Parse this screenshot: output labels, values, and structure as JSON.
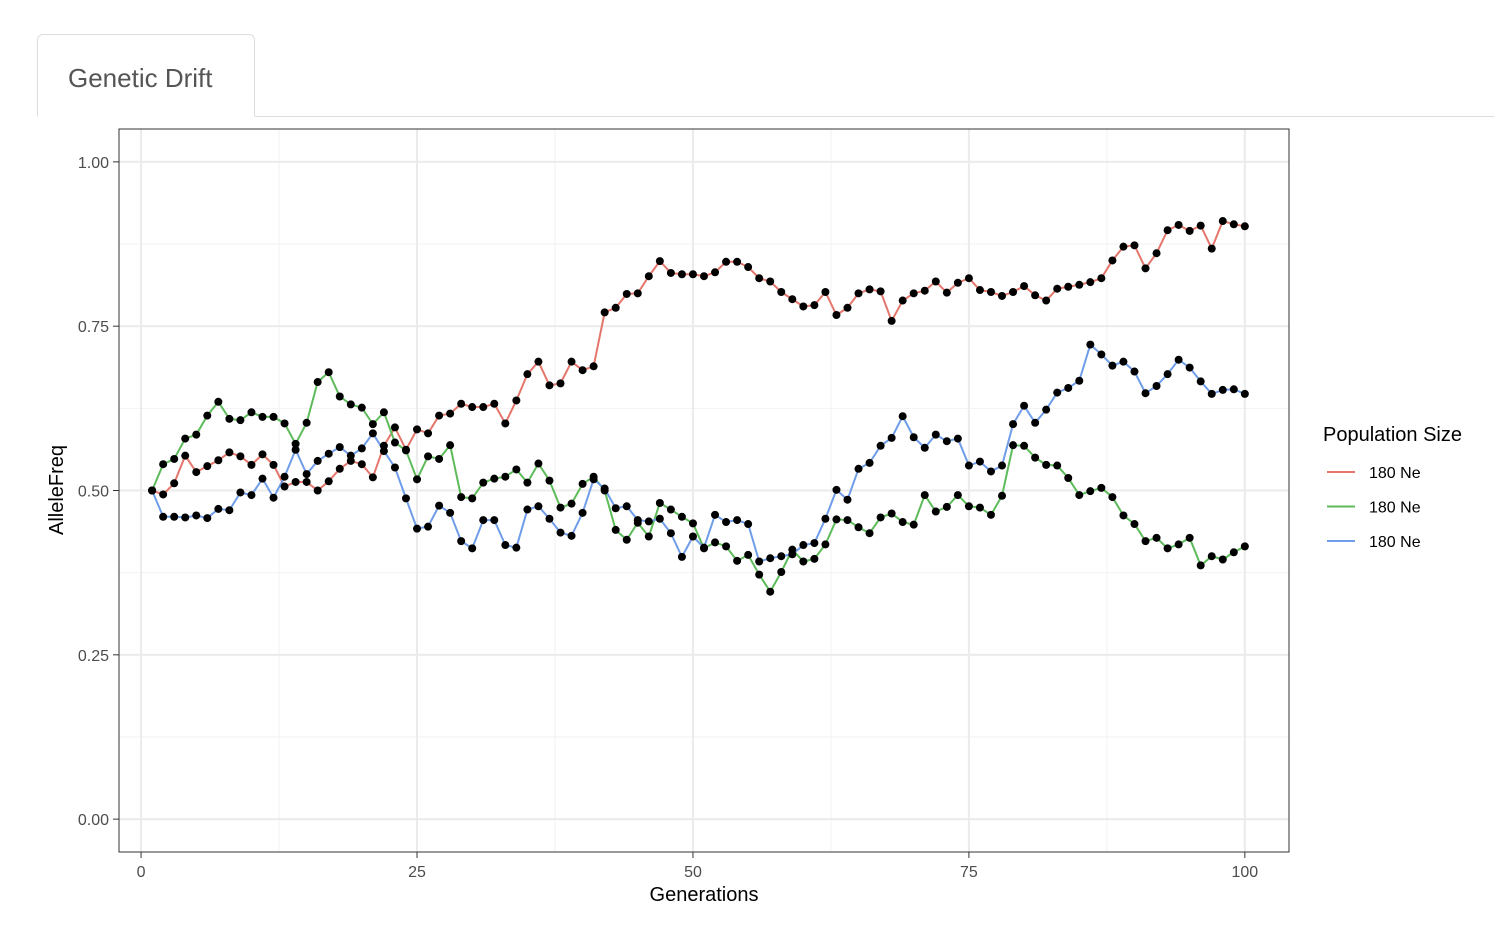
{
  "tabs": [
    {
      "label": "Genetic Drift",
      "active": true
    }
  ],
  "chart_data": {
    "type": "line",
    "title": "",
    "xlabel": "Generations",
    "ylabel": "AlleleFreq",
    "xlim": [
      -2,
      104
    ],
    "ylim": [
      -0.05,
      1.05
    ],
    "xticks": [
      0,
      25,
      50,
      75,
      100
    ],
    "xtick_labels": [
      "0",
      "25",
      "50",
      "75",
      "100"
    ],
    "yticks": [
      0,
      0.25,
      0.5,
      0.75,
      1.0
    ],
    "ytick_labels": [
      "0.00",
      "0.25",
      "0.50",
      "0.75",
      "1.00"
    ],
    "grid": true,
    "points": true,
    "legend": {
      "title": "Population Size",
      "position": "right"
    },
    "series": [
      {
        "name": "180 Ne",
        "color": "#E5766C",
        "values": [
          0.5,
          0.494,
          0.511,
          0.553,
          0.528,
          0.537,
          0.546,
          0.558,
          0.552,
          0.539,
          0.555,
          0.539,
          0.506,
          0.513,
          0.513,
          0.5,
          0.514,
          0.533,
          0.545,
          0.54,
          0.52,
          0.568,
          0.596,
          0.562,
          0.593,
          0.587,
          0.614,
          0.617,
          0.632,
          0.627,
          0.627,
          0.632,
          0.602,
          0.637,
          0.677,
          0.696,
          0.66,
          0.663,
          0.696,
          0.683,
          0.689,
          0.771,
          0.778,
          0.799,
          0.8,
          0.826,
          0.849,
          0.831,
          0.829,
          0.829,
          0.826,
          0.832,
          0.848,
          0.848,
          0.84,
          0.823,
          0.818,
          0.802,
          0.791,
          0.78,
          0.782,
          0.802,
          0.767,
          0.778,
          0.8,
          0.806,
          0.803,
          0.758,
          0.789,
          0.8,
          0.804,
          0.818,
          0.801,
          0.816,
          0.823,
          0.805,
          0.802,
          0.796,
          0.802,
          0.811,
          0.797,
          0.789,
          0.807,
          0.81,
          0.813,
          0.817,
          0.823,
          0.85,
          0.871,
          0.873,
          0.838,
          0.861,
          0.896,
          0.904,
          0.895,
          0.903,
          0.868,
          0.91,
          0.905,
          0.902
        ]
      },
      {
        "name": "180 Ne",
        "color": "#5DBB5A",
        "values": [
          0.5,
          0.54,
          0.548,
          0.579,
          0.585,
          0.614,
          0.635,
          0.609,
          0.607,
          0.619,
          0.612,
          0.612,
          0.602,
          0.571,
          0.603,
          0.665,
          0.68,
          0.643,
          0.631,
          0.626,
          0.601,
          0.619,
          0.573,
          0.561,
          0.517,
          0.552,
          0.548,
          0.569,
          0.49,
          0.488,
          0.512,
          0.518,
          0.521,
          0.532,
          0.512,
          0.541,
          0.515,
          0.474,
          0.48,
          0.51,
          0.521,
          0.5,
          0.44,
          0.425,
          0.451,
          0.43,
          0.481,
          0.471,
          0.46,
          0.45,
          0.412,
          0.421,
          0.415,
          0.393,
          0.402,
          0.372,
          0.346,
          0.376,
          0.41,
          0.392,
          0.396,
          0.418,
          0.456,
          0.455,
          0.444,
          0.435,
          0.459,
          0.465,
          0.452,
          0.448,
          0.493,
          0.468,
          0.475,
          0.493,
          0.476,
          0.474,
          0.463,
          0.492,
          0.569,
          0.568,
          0.55,
          0.539,
          0.538,
          0.519,
          0.493,
          0.499,
          0.504,
          0.49,
          0.462,
          0.449,
          0.423,
          0.428,
          0.412,
          0.418,
          0.428,
          0.386,
          0.4,
          0.395,
          0.406,
          0.415
        ]
      },
      {
        "name": "180 Ne",
        "color": "#6F9DE9",
        "values": [
          0.5,
          0.46,
          0.46,
          0.459,
          0.462,
          0.458,
          0.472,
          0.47,
          0.497,
          0.493,
          0.518,
          0.489,
          0.521,
          0.562,
          0.525,
          0.545,
          0.556,
          0.566,
          0.553,
          0.564,
          0.587,
          0.56,
          0.535,
          0.488,
          0.442,
          0.445,
          0.477,
          0.466,
          0.423,
          0.412,
          0.455,
          0.455,
          0.417,
          0.413,
          0.471,
          0.476,
          0.457,
          0.436,
          0.431,
          0.466,
          0.517,
          0.503,
          0.473,
          0.476,
          0.455,
          0.453,
          0.457,
          0.435,
          0.399,
          0.43,
          0.413,
          0.463,
          0.452,
          0.455,
          0.449,
          0.392,
          0.397,
          0.4,
          0.403,
          0.417,
          0.42,
          0.457,
          0.501,
          0.486,
          0.533,
          0.542,
          0.568,
          0.58,
          0.613,
          0.581,
          0.565,
          0.585,
          0.575,
          0.579,
          0.538,
          0.544,
          0.529,
          0.538,
          0.601,
          0.629,
          0.603,
          0.623,
          0.649,
          0.656,
          0.667,
          0.722,
          0.707,
          0.69,
          0.696,
          0.681,
          0.648,
          0.659,
          0.677,
          0.699,
          0.687,
          0.666,
          0.647,
          0.653,
          0.654,
          0.647
        ]
      }
    ]
  }
}
